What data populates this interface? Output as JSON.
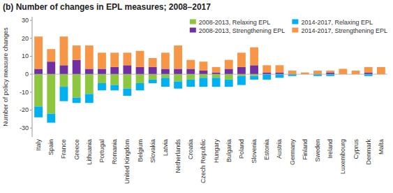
{
  "chart_data": {
    "type": "bar",
    "stacked": true,
    "title": "(b) Number of changes in EPL measures; 2008–2017",
    "ylabel": "Number of policy measure changes",
    "categories": [
      "Italy",
      "Spain",
      "France",
      "Greece",
      "Lithuania",
      "Portugal",
      "Romania",
      "United Kingdom",
      "Belgium",
      "Slovakia",
      "Latvia",
      "Netherlands",
      "Croatia",
      "Czech Republic",
      "Hungary",
      "Bulgaria",
      "Poland",
      "Slovenia",
      "Estonia",
      "Austria",
      "Germany",
      "Finland",
      "Sweden",
      "Ireland",
      "Luxembourg",
      "Cyprus",
      "Denmark",
      "Malta"
    ],
    "series": [
      {
        "name": "2008-2013, Relaxing EPL",
        "color": "#8dc63f",
        "values": [
          -18,
          -22,
          -7,
          -13,
          -11,
          -5,
          -6,
          -8,
          -5,
          -3,
          -2,
          -4,
          -3,
          -2,
          -2,
          -3,
          -1,
          -1,
          0,
          0,
          0,
          0,
          0,
          0,
          0,
          0,
          0,
          0
        ]
      },
      {
        "name": "2008-2013, Strengthening EPL",
        "color": "#7030a0",
        "values": [
          3,
          7,
          5,
          8,
          3,
          3,
          4,
          5,
          4,
          4,
          3,
          3,
          3,
          2,
          1,
          3,
          4,
          5,
          1,
          1,
          0,
          0,
          0,
          1,
          0,
          0,
          1,
          0
        ]
      },
      {
        "name": "2014-2017, Relaxing EPL",
        "color": "#00b0f0",
        "values": [
          -6,
          -5,
          -8,
          -3,
          -5,
          -4,
          -3,
          -4,
          -4,
          -2,
          -5,
          -4,
          -4,
          -5,
          -5,
          -4,
          -5,
          -2,
          -3,
          -2,
          -1,
          0,
          -1,
          -1,
          0,
          0,
          -1,
          0
        ]
      },
      {
        "name": "2014-2017, Strengthening EPL",
        "color": "#f79646",
        "values": [
          18,
          7,
          16,
          8,
          13,
          9,
          8,
          7,
          9,
          5,
          9,
          13,
          5,
          5,
          3,
          5,
          8,
          10,
          4,
          4,
          2,
          1,
          2,
          1,
          3,
          2,
          3,
          4
        ]
      }
    ],
    "ylim": [
      -35,
      32
    ],
    "yticks": [
      -30,
      -20,
      -10,
      0,
      10,
      20,
      30
    ],
    "grid": false,
    "legend": "upper right"
  }
}
